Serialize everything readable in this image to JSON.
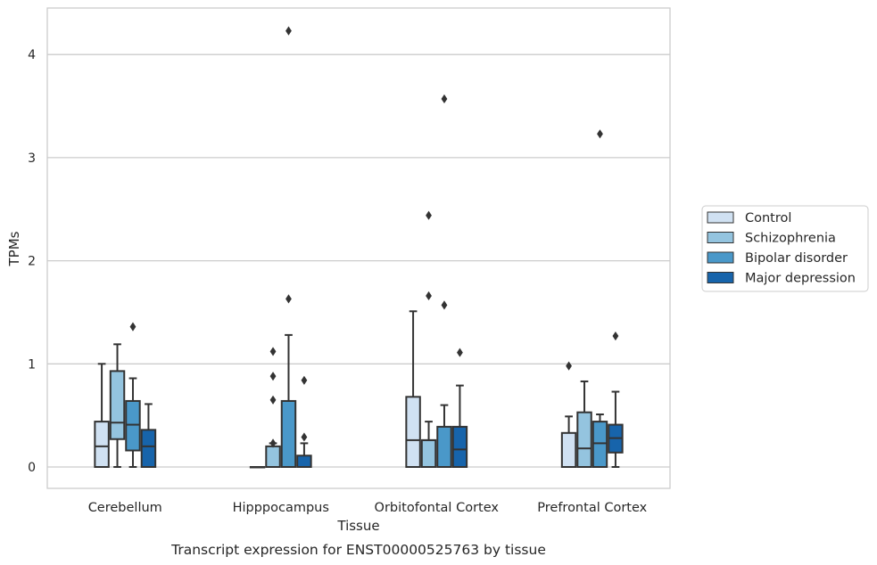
{
  "chart_data": {
    "type": "boxplot",
    "title": "",
    "caption": "Transcript expression for ENST00000525763 by tissue",
    "xlabel": "Tissue",
    "ylabel": "TPMs",
    "ylim": [
      -0.2,
      4.45
    ],
    "yticks": [
      0,
      1,
      2,
      3,
      4
    ],
    "grid": "horizontal",
    "legend_position": "right",
    "categories": [
      "Cerebellum",
      "Hipppocampus",
      "Orbitofontal Cortex",
      "Prefrontal Cortex"
    ],
    "series": [
      {
        "name": "Control",
        "color": "#d0e1f2",
        "boxes": [
          {
            "q1": 0.0,
            "median": 0.2,
            "q3": 0.44,
            "whisker_low": 0.0,
            "whisker_high": 1.0,
            "outliers": []
          },
          {
            "q1": 0.0,
            "median": 0.0,
            "q3": 0.0,
            "whisker_low": 0.0,
            "whisker_high": 0.0,
            "outliers": []
          },
          {
            "q1": 0.0,
            "median": 0.26,
            "q3": 0.68,
            "whisker_low": 0.0,
            "whisker_high": 1.51,
            "outliers": []
          },
          {
            "q1": 0.0,
            "median": 0.0,
            "q3": 0.33,
            "whisker_low": 0.0,
            "whisker_high": 0.49,
            "outliers": [
              0.98
            ]
          }
        ]
      },
      {
        "name": "Schizophrenia",
        "color": "#94c4df",
        "boxes": [
          {
            "q1": 0.27,
            "median": 0.43,
            "q3": 0.93,
            "whisker_low": 0.0,
            "whisker_high": 1.19,
            "outliers": []
          },
          {
            "q1": 0.0,
            "median": 0.0,
            "q3": 0.2,
            "whisker_low": 0.0,
            "whisker_high": 0.23,
            "outliers": [
              0.23,
              0.65,
              0.88,
              1.12
            ]
          },
          {
            "q1": 0.0,
            "median": 0.26,
            "q3": 0.26,
            "whisker_low": 0.0,
            "whisker_high": 0.44,
            "outliers": [
              1.66,
              2.44
            ]
          },
          {
            "q1": 0.0,
            "median": 0.18,
            "q3": 0.53,
            "whisker_low": 0.0,
            "whisker_high": 0.83,
            "outliers": []
          }
        ]
      },
      {
        "name": "Bipolar disorder",
        "color": "#4a98c9",
        "boxes": [
          {
            "q1": 0.16,
            "median": 0.41,
            "q3": 0.64,
            "whisker_low": 0.0,
            "whisker_high": 0.86,
            "outliers": [
              1.36
            ]
          },
          {
            "q1": 0.0,
            "median": 0.0,
            "q3": 0.64,
            "whisker_low": 0.0,
            "whisker_high": 1.28,
            "outliers": [
              1.63,
              4.23
            ]
          },
          {
            "q1": 0.0,
            "median": 0.0,
            "q3": 0.39,
            "whisker_low": 0.0,
            "whisker_high": 0.6,
            "outliers": [
              1.57,
              3.57
            ]
          },
          {
            "q1": 0.0,
            "median": 0.23,
            "q3": 0.44,
            "whisker_low": 0.0,
            "whisker_high": 0.51,
            "outliers": [
              3.23
            ]
          }
        ]
      },
      {
        "name": "Major depression",
        "color": "#1764ab",
        "boxes": [
          {
            "q1": 0.0,
            "median": 0.2,
            "q3": 0.36,
            "whisker_low": 0.0,
            "whisker_high": 0.61,
            "outliers": []
          },
          {
            "q1": 0.0,
            "median": 0.0,
            "q3": 0.11,
            "whisker_low": 0.0,
            "whisker_high": 0.23,
            "outliers": [
              0.29,
              0.84
            ]
          },
          {
            "q1": 0.0,
            "median": 0.17,
            "q3": 0.39,
            "whisker_low": 0.0,
            "whisker_high": 0.79,
            "outliers": [
              1.11
            ]
          },
          {
            "q1": 0.14,
            "median": 0.28,
            "q3": 0.41,
            "whisker_low": 0.0,
            "whisker_high": 0.73,
            "outliers": [
              1.27
            ]
          }
        ]
      }
    ]
  }
}
